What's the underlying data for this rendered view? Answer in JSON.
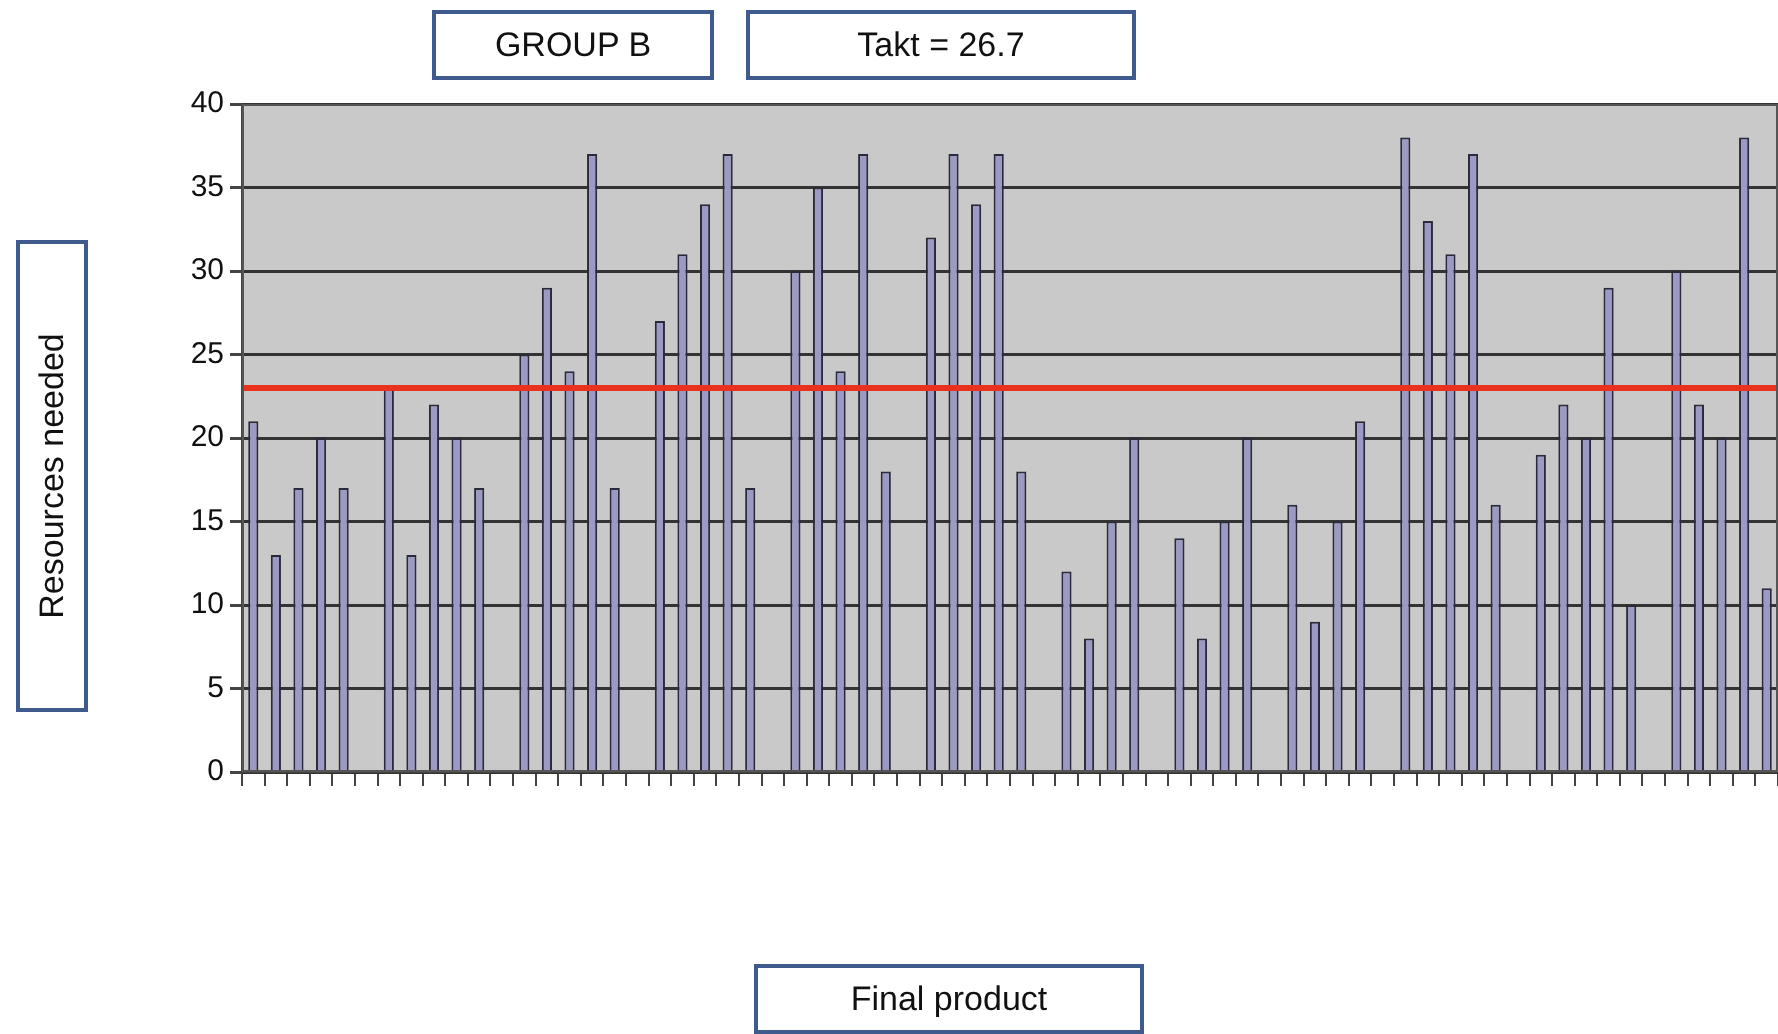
{
  "chart_data": {
    "type": "bar",
    "ylabel": "Resources needed",
    "annotations": [
      "GROUP B",
      "Takt = 26.7",
      "Final product"
    ],
    "categories": [
      null,
      null,
      null,
      null,
      null,
      null,
      null,
      null,
      null,
      null,
      null,
      null,
      null,
      null,
      null,
      null,
      null,
      null,
      null,
      null,
      null,
      null,
      null,
      null,
      null,
      null,
      null,
      null,
      null,
      null,
      null,
      null,
      null,
      null,
      null,
      null,
      null,
      null,
      null,
      null,
      null,
      null,
      null,
      null,
      null,
      null,
      null,
      null,
      null,
      null,
      null,
      null,
      null,
      null,
      null,
      null,
      null,
      null,
      null,
      null,
      null,
      null,
      null,
      null,
      null,
      null,
      null,
      null
    ],
    "values": [
      21,
      13,
      17,
      20,
      17,
      null,
      23,
      13,
      22,
      20,
      17,
      null,
      25,
      29,
      24,
      37,
      17,
      null,
      27,
      31,
      34,
      37,
      17,
      null,
      30,
      35,
      24,
      37,
      18,
      null,
      32,
      37,
      34,
      37,
      18,
      null,
      12,
      8,
      15,
      20,
      null,
      14,
      8,
      15,
      20,
      null,
      16,
      9,
      15,
      21,
      null,
      38,
      33,
      31,
      37,
      16,
      null,
      19,
      22,
      20,
      29,
      10,
      null,
      30,
      22,
      20,
      38,
      11
    ],
    "color": "#9a9ac4",
    "ylim": [
      0,
      40
    ],
    "yticks": [
      0,
      5,
      10,
      15,
      20,
      25,
      30,
      35,
      40
    ],
    "grid": "y",
    "legend": false,
    "ref_lines": [
      {
        "axis": "y",
        "value": 23,
        "color": "#e8321e"
      }
    ]
  }
}
